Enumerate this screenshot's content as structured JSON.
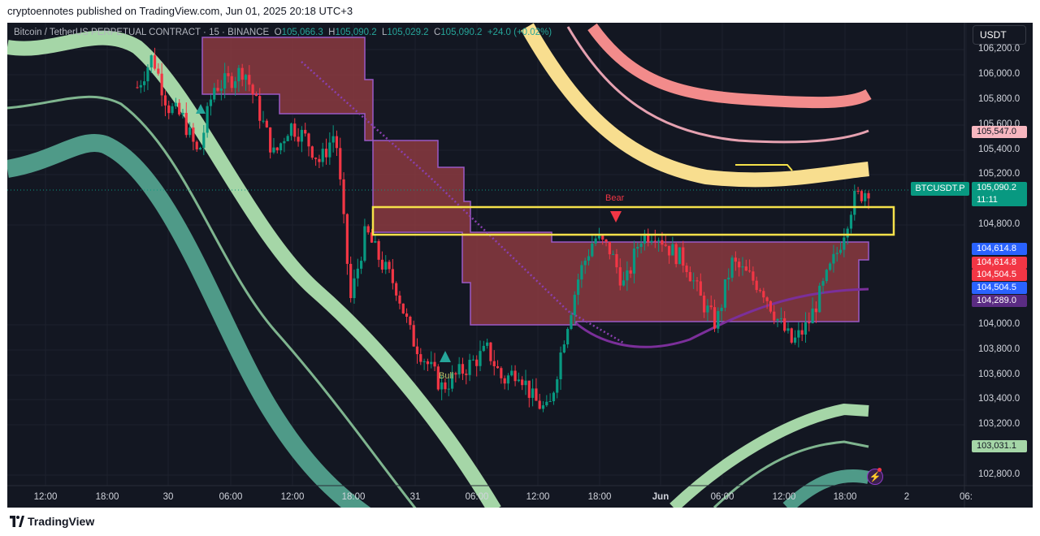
{
  "header": {
    "publish_line": "cryptoennotes published on TradingView.com, Jun 01, 2025 20:18 UTC+3"
  },
  "legend": {
    "symbol": "Bitcoin / TetherUS PERPETUAL CONTRACT · 15 · BINANCE",
    "o_label": "O",
    "o_value": "105,066.3",
    "h_label": "H",
    "h_value": "105,090.2",
    "l_label": "L",
    "l_value": "105,029.2",
    "c_label": "C",
    "c_value": "105,090.2",
    "change": "+24.0 (+0.02%)"
  },
  "currency_button": "USDT",
  "symbol_tag": "BTCUSDT.P",
  "current_price": {
    "price": "105,090.2",
    "countdown": "11:11"
  },
  "price_labels": [
    {
      "text": "105,547.0",
      "bg": "#f7b7c0",
      "fg": "#131722"
    },
    {
      "text": "104,614.8",
      "bg": "#2962ff",
      "fg": "#ffffff"
    },
    {
      "text": "104,614.8",
      "bg": "#f23645",
      "fg": "#ffffff"
    },
    {
      "text": "104,504.5",
      "bg": "#f23645",
      "fg": "#ffffff"
    },
    {
      "text": "104,504.5",
      "bg": "#2962ff",
      "fg": "#ffffff"
    },
    {
      "text": "104,289.0",
      "bg": "#5b2c83",
      "fg": "#ffffff"
    },
    {
      "text": "103,031.1",
      "bg": "#a5d6a7",
      "fg": "#131722"
    }
  ],
  "annotations": {
    "bear": "Bear",
    "bull": "Bull"
  },
  "footer": {
    "brand": "TradingView"
  },
  "colors": {
    "background": "#131722",
    "up": "#089981",
    "down": "#f23645",
    "zone_fill": "#8b3a3f",
    "zone_edge": "#9b59c6",
    "highlight_box": "#f5e14a"
  },
  "chart_data": {
    "type": "candlestick",
    "y_axis": {
      "side": "right",
      "ticks": [
        106200,
        106000,
        105800,
        105600,
        105400,
        105200,
        104800,
        104000,
        103800,
        103600,
        103400,
        103200,
        102800
      ],
      "tick_labels": [
        "106,200.0",
        "106,000.0",
        "105,800.0",
        "105,600.0",
        "105,400.0",
        "105,200.0",
        "104,800.0",
        "104,000.0",
        "103,800.0",
        "103,600.0",
        "103,400.0",
        "103,200.0",
        "102,800.0"
      ],
      "range": [
        102700,
        106300
      ]
    },
    "x_axis": {
      "ticks": [
        "12:00",
        "18:00",
        "30",
        "06:00",
        "12:00",
        "18:00",
        "31",
        "06:00",
        "12:00",
        "18:00",
        "Jun",
        "06:00",
        "12:00",
        "18:00",
        "2",
        "06:"
      ]
    },
    "series": [
      {
        "name": "Close path",
        "points": [
          105900,
          106150,
          105750,
          105650,
          105350,
          105900,
          105950,
          106050,
          105700,
          105350,
          105600,
          105500,
          105300,
          105550,
          104200,
          104750,
          104500,
          104300,
          103900,
          103700,
          103500,
          103600,
          103700,
          103800,
          103550,
          103650,
          103400,
          103300,
          103900,
          104400,
          104700,
          104600,
          104300,
          104700,
          104750,
          104600,
          104500,
          104200,
          104000,
          104500,
          104400,
          104300,
          104050,
          103850,
          104000,
          104300,
          104600,
          105000,
          105090
        ]
      },
      {
        "name": "Downtrend dotted line",
        "points": [
          [
            360,
            50
          ],
          [
            700,
            340
          ],
          [
            760,
            380
          ]
        ]
      }
    ],
    "zones": [
      {
        "name": "Bear order block",
        "top": 104860,
        "bottom": 104640
      }
    ]
  }
}
